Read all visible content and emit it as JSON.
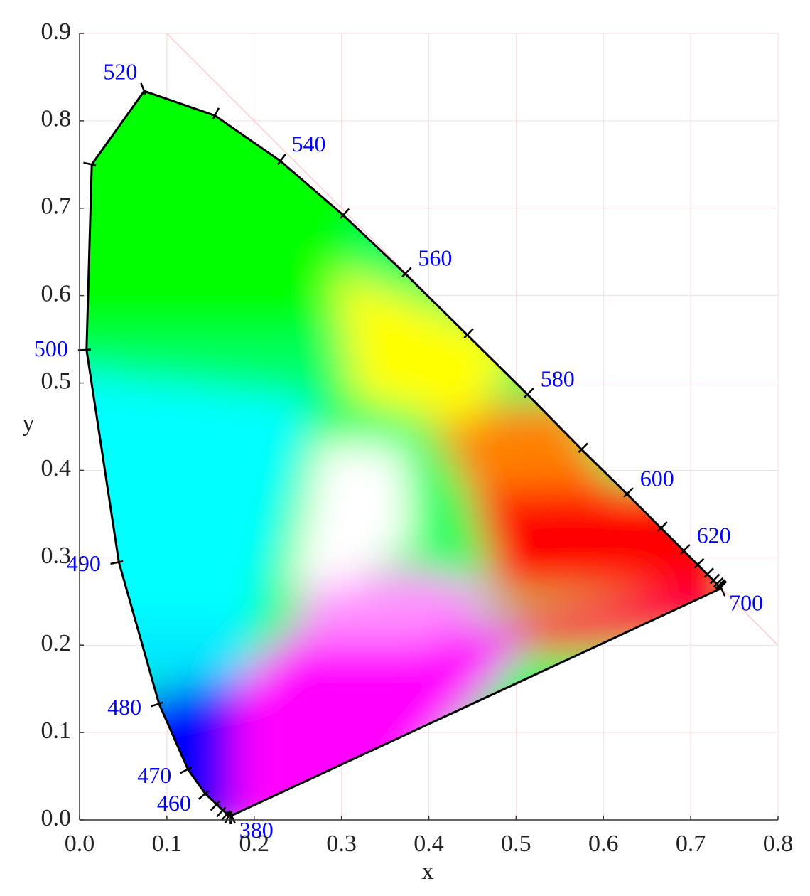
{
  "chart_data": {
    "type": "chromaticity",
    "xlabel": "x",
    "ylabel": "y",
    "xlim": [
      0,
      0.8
    ],
    "ylim": [
      0,
      0.9
    ],
    "xticks": [
      {
        "value": 0,
        "label": "0.0"
      },
      0.1,
      0.2,
      0.3,
      0.4,
      0.5,
      0.6,
      0.7,
      0.8
    ],
    "yticks": [
      {
        "value": 0,
        "label": "0.0"
      },
      0.1,
      0.2,
      0.3,
      0.4,
      0.5,
      0.6,
      0.7,
      0.8,
      0.9
    ],
    "grid": true,
    "wavelengths": [
      380,
      null,
      null,
      null,
      null,
      null,
      null,
      null,
      460,
      470,
      480,
      490,
      500,
      null,
      520,
      null,
      540,
      null,
      560,
      null,
      580,
      null,
      600,
      null,
      620,
      null,
      null,
      null,
      null,
      null,
      null,
      null,
      700
    ],
    "x": [
      0.174,
      0.174,
      0.173,
      0.173,
      0.171,
      0.169,
      0.164,
      0.157,
      0.144,
      0.124,
      0.091,
      0.045,
      0.008,
      0.014,
      0.074,
      0.155,
      0.23,
      0.302,
      0.373,
      0.444,
      0.513,
      0.575,
      0.627,
      0.666,
      0.692,
      0.708,
      0.719,
      0.726,
      0.73,
      0.732,
      0.733,
      0.734,
      0.735
    ],
    "y": [
      0.005,
      0.005,
      0.005,
      0.005,
      0.005,
      0.007,
      0.011,
      0.018,
      0.03,
      0.058,
      0.133,
      0.295,
      0.538,
      0.75,
      0.834,
      0.806,
      0.754,
      0.692,
      0.625,
      0.555,
      0.487,
      0.424,
      0.373,
      0.334,
      0.308,
      0.292,
      0.281,
      0.274,
      0.27,
      0.268,
      0.267,
      0.266,
      0.265
    ],
    "locus_color": "#000000",
    "label_color": "#0000ff",
    "grid_color": "#f6dcdc"
  }
}
